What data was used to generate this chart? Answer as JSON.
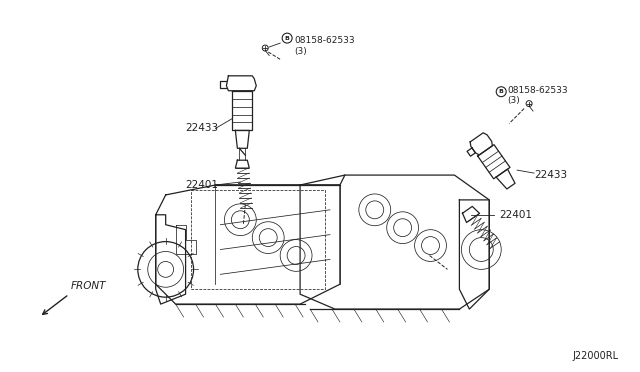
{
  "bg_color": "#ffffff",
  "line_color": "#222222",
  "label_color": "#111111",
  "part_numbers": {
    "bolt_left": "08158-62533\n(3)",
    "bolt_right": "08158-62533\n(3)",
    "coil_left": "22433",
    "coil_right": "22433",
    "plug_left": "22401",
    "plug_right": "22401"
  },
  "diagram_code": "J22000RL",
  "front_label": "FRONT",
  "bolt_left_circle_label": "B",
  "bolt_right_circle_label": "B"
}
